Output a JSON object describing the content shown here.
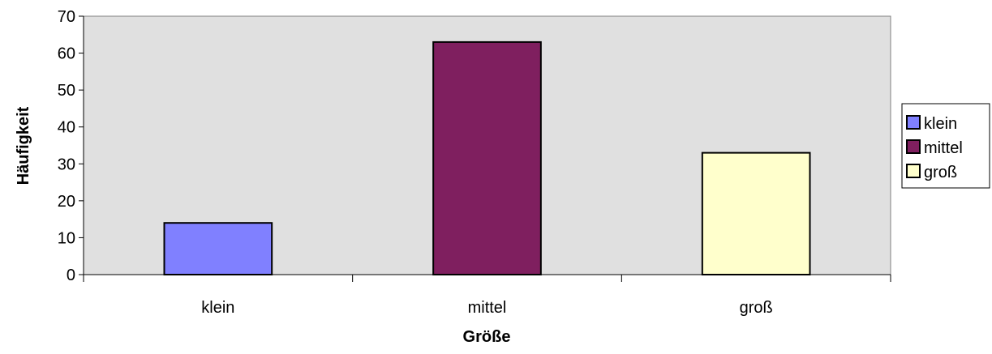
{
  "chart_data": {
    "type": "bar",
    "title": "",
    "xlabel": "Größe",
    "ylabel": "Häufigkeit",
    "categories": [
      "klein",
      "mittel",
      "groß"
    ],
    "series": [
      {
        "name": "klein",
        "values": [
          14,
          null,
          null
        ],
        "color": "#8080ff"
      },
      {
        "name": "mittel",
        "values": [
          null,
          63,
          null
        ],
        "color": "#7f1f5f"
      },
      {
        "name": "groß",
        "values": [
          null,
          null,
          33
        ],
        "color": "#ffffcc"
      }
    ],
    "ylim": [
      0,
      70
    ],
    "yticks": [
      0,
      10,
      20,
      30,
      40,
      50,
      60,
      70
    ],
    "grid": false,
    "legend_position": "right",
    "plot_background": "#e0e0e0"
  }
}
